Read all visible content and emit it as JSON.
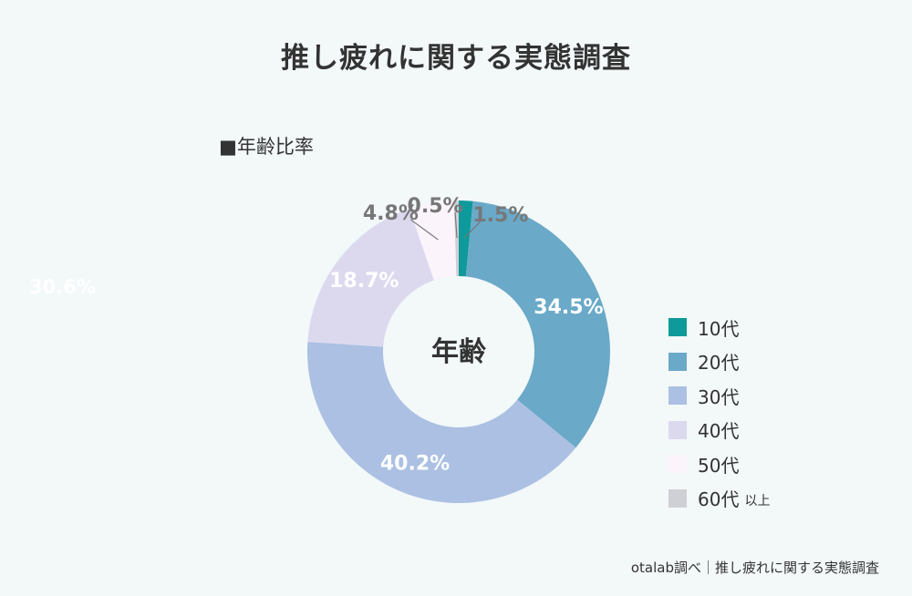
{
  "title": "推し疲れに関する実態調査",
  "subtitle": "■年齢比率",
  "footer": "otalab調べ｜推し疲れに関する実態調査",
  "stray_label": "30.6%",
  "chart_data": {
    "type": "pie",
    "title": "推し疲れに関する実態調査",
    "subtitle": "■年齢比率",
    "center_label": "年齢",
    "slices": [
      {
        "label": "10代",
        "value": 1.5,
        "display": "1.5%",
        "color": "#0e9a9a"
      },
      {
        "label": "20代",
        "value": 34.5,
        "display": "34.5%",
        "color": "#6aa9c8"
      },
      {
        "label": "30代",
        "value": 40.2,
        "display": "40.2%",
        "color": "#abc0e2"
      },
      {
        "label": "40代",
        "value": 18.7,
        "display": "18.7%",
        "color": "#dcd9ef"
      },
      {
        "label": "50代",
        "value": 4.8,
        "display": "4.8%",
        "color": "#fbf4fb"
      },
      {
        "label": "60代",
        "value": 0.5,
        "display": "0.5%",
        "color": "#cfcfd6",
        "suffix": "以上"
      }
    ],
    "legend_position": "right"
  }
}
